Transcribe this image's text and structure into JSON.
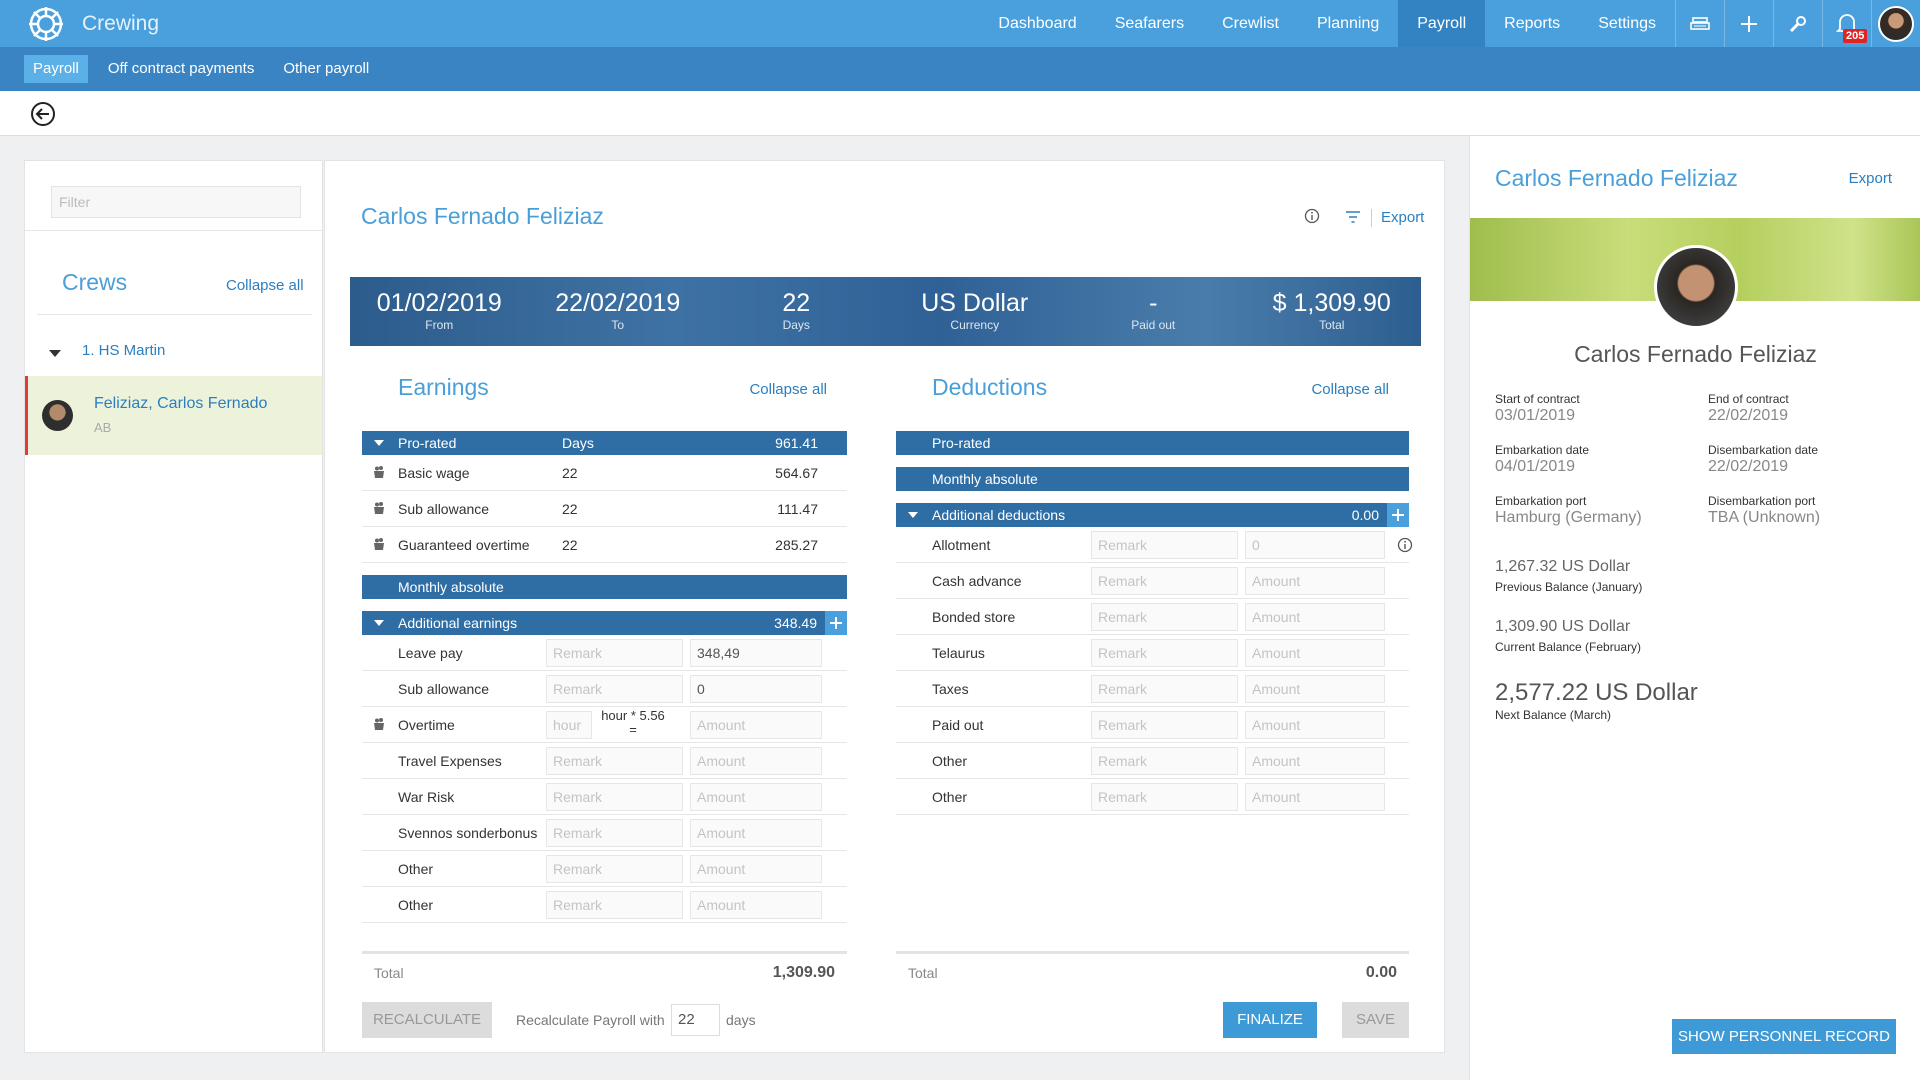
{
  "nav": {
    "brand": "Crewing",
    "items": [
      {
        "label": "Dashboard"
      },
      {
        "label": "Seafarers"
      },
      {
        "label": "Crewlist"
      },
      {
        "label": "Planning"
      },
      {
        "label": "Payroll",
        "active": true
      },
      {
        "label": "Reports"
      },
      {
        "label": "Settings"
      }
    ],
    "notifications": "205"
  },
  "subnav": [
    {
      "label": "Payroll",
      "active": true
    },
    {
      "label": "Off contract payments"
    },
    {
      "label": "Other payroll"
    }
  ],
  "sidebar": {
    "filter": "Filter",
    "title": "Crews",
    "collapse": "Collapse all",
    "groups": [
      {
        "name": "1. HS Martin",
        "members": [
          {
            "name": "Feliziaz, Carlos Fernado",
            "rank": "AB"
          }
        ]
      }
    ]
  },
  "main": {
    "title": "Carlos Fernado Feliziaz",
    "export": "Export",
    "summary": [
      {
        "value": "01/02/2019",
        "label": "From"
      },
      {
        "value": "22/02/2019",
        "label": "To"
      },
      {
        "value": "22",
        "label": "Days"
      },
      {
        "value": "US Dollar",
        "label": "Currency"
      },
      {
        "value": "-",
        "label": "Paid out"
      },
      {
        "value": "$ 1,309.90",
        "label": "Total"
      }
    ],
    "earnings": {
      "title": "Earnings",
      "collapse": "Collapse all",
      "groups": [
        {
          "label": "Pro-rated",
          "column": "Days",
          "total": "961.41",
          "rows": [
            {
              "name": "Basic wage",
              "days": "22",
              "amount": "564.67"
            },
            {
              "name": "Sub allowance",
              "days": "22",
              "amount": "111.47"
            },
            {
              "name": "Guaranteed overtime",
              "days": "22",
              "amount": "285.27"
            }
          ]
        },
        {
          "label": "Monthly absolute"
        },
        {
          "label": "Additional earnings",
          "total": "348.49",
          "rows": [
            {
              "name": "Leave pay",
              "remark": {
                "placeholder": "Remark"
              },
              "amount": {
                "value": "348,49"
              }
            },
            {
              "name": "Sub allowance",
              "remark": {
                "placeholder": "Remark"
              },
              "amount": {
                "value": "0"
              }
            },
            {
              "name": "Overtime",
              "unit": {
                "placeholder": "hour"
              },
              "formula": "hour * 5.56 =",
              "amount": {
                "placeholder": "Amount"
              }
            },
            {
              "name": "Travel Expenses",
              "remark": {
                "placeholder": "Remark"
              },
              "amount": {
                "placeholder": "Amount"
              }
            },
            {
              "name": "War Risk",
              "remark": {
                "placeholder": "Remark"
              },
              "amount": {
                "placeholder": "Amount"
              }
            },
            {
              "name": "Svennos sonderbonus",
              "remark": {
                "placeholder": "Remark"
              },
              "amount": {
                "placeholder": "Amount"
              }
            },
            {
              "name": "Other",
              "remark": {
                "placeholder": "Remark"
              },
              "amount": {
                "placeholder": "Amount"
              }
            },
            {
              "name": "Other",
              "remark": {
                "placeholder": "Remark"
              },
              "amount": {
                "placeholder": "Amount"
              }
            }
          ]
        }
      ],
      "total": {
        "label": "Total",
        "value": "1,309.90"
      }
    },
    "deductions": {
      "title": "Deductions",
      "collapse": "Collapse all",
      "groups": [
        {
          "label": "Pro-rated"
        },
        {
          "label": "Monthly absolute"
        },
        {
          "label": "Additional deductions",
          "total": "0.00",
          "rows": [
            {
              "name": "Allotment",
              "remark": {
                "placeholder": "Remark"
              },
              "amount": {
                "placeholder": "0"
              }
            },
            {
              "name": "Cash advance",
              "remark": {
                "placeholder": "Remark"
              },
              "amount": {
                "placeholder": "Amount"
              }
            },
            {
              "name": "Bonded store",
              "remark": {
                "placeholder": "Remark"
              },
              "amount": {
                "placeholder": "Amount"
              }
            },
            {
              "name": "Telaurus",
              "remark": {
                "placeholder": "Remark"
              },
              "amount": {
                "placeholder": "Amount"
              }
            },
            {
              "name": "Taxes",
              "remark": {
                "placeholder": "Remark"
              },
              "amount": {
                "placeholder": "Amount"
              }
            },
            {
              "name": "Paid out",
              "remark": {
                "placeholder": "Remark"
              },
              "amount": {
                "placeholder": "Amount"
              }
            },
            {
              "name": "Other",
              "remark": {
                "placeholder": "Remark"
              },
              "amount": {
                "placeholder": "Amount"
              }
            },
            {
              "name": "Other",
              "remark": {
                "placeholder": "Remark"
              },
              "amount": {
                "placeholder": "Amount"
              }
            }
          ]
        }
      ],
      "total": {
        "label": "Total",
        "value": "0.00"
      }
    },
    "footer": {
      "recalculate": "RECALCULATE",
      "recalc_text": "Recalculate Payroll with",
      "recalc_days": "22",
      "days": "days",
      "finalize": "FINALIZE",
      "save": "SAVE"
    }
  },
  "profile": {
    "title": "Carlos Fernado Feliziaz",
    "export": "Export",
    "name": "Carlos Fernado Feliziaz",
    "fields": [
      {
        "label": "Start of contract",
        "value": "03/01/2019"
      },
      {
        "label": "End of contract",
        "value": "22/02/2019"
      },
      {
        "label": "Embarkation date",
        "value": "04/01/2019"
      },
      {
        "label": "Disembarkation date",
        "value": "22/02/2019"
      },
      {
        "label": "Embarkation port",
        "value": "Hamburg (Germany)"
      },
      {
        "label": "Disembarkation port",
        "value": "TBA (Unknown)"
      }
    ],
    "balances": [
      {
        "value": "1,267.32 US Dollar",
        "label": "Previous Balance (January)"
      },
      {
        "value": "1,309.90 US Dollar",
        "label": "Current Balance (February)"
      },
      {
        "value": "2,577.22 US Dollar",
        "label": "Next Balance (March)"
      }
    ],
    "button": "SHOW PERSONNEL RECORD"
  }
}
